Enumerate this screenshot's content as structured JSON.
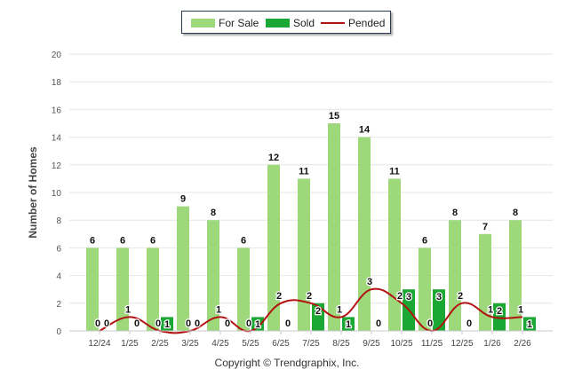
{
  "chart_data": {
    "type": "bar",
    "categories": [
      "12/24",
      "1/25",
      "2/25",
      "3/25",
      "4/25",
      "5/25",
      "6/25",
      "7/25",
      "8/25",
      "9/25",
      "10/25",
      "11/25",
      "12/25",
      "1/26",
      "2/26"
    ],
    "series": [
      {
        "name": "For Sale",
        "type": "bar",
        "color": "#9dd87a",
        "values": [
          6,
          6,
          6,
          9,
          8,
          6,
          12,
          11,
          15,
          14,
          11,
          6,
          8,
          7,
          8
        ]
      },
      {
        "name": "Sold",
        "type": "bar",
        "color": "#1aa733",
        "values": [
          0,
          0,
          1,
          0,
          0,
          1,
          0,
          2,
          1,
          0,
          3,
          3,
          0,
          2,
          1
        ]
      },
      {
        "name": "Pended",
        "type": "line",
        "color": "#b31212",
        "values": [
          0,
          1,
          0,
          0,
          1,
          0,
          2,
          2,
          1,
          3,
          2,
          0,
          2,
          1,
          1
        ]
      }
    ],
    "ylabel": "Number of Homes",
    "xlabel": "",
    "ylim": [
      0,
      20
    ],
    "yticks": [
      0,
      2,
      4,
      6,
      8,
      10,
      12,
      14,
      16,
      18,
      20
    ],
    "grid": true,
    "legend_position": "top-center"
  },
  "legend": {
    "for_sale": "For Sale",
    "sold": "Sold",
    "pended": "Pended"
  },
  "footer": "Copyright © Trendgraphix, Inc."
}
